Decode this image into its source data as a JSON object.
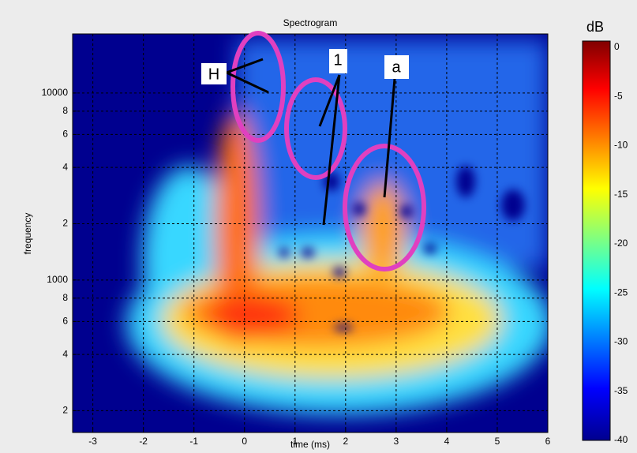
{
  "chart_data": {
    "type": "heatmap",
    "title": "Spectrogram",
    "x_label": "time (ms)",
    "y_label": "frequency",
    "xlim": [
      -3.4,
      6
    ],
    "xticks": [
      -3,
      -2,
      -1,
      0,
      1,
      2,
      3,
      4,
      5,
      6
    ],
    "ylim": [
      153,
      20700
    ],
    "y_scale": "log",
    "yticks": [
      {
        "value": 200,
        "label": "2"
      },
      {
        "value": 400,
        "label": "4"
      },
      {
        "value": 600,
        "label": "6"
      },
      {
        "value": 800,
        "label": "8"
      },
      1000,
      {
        "value": 2000,
        "label": "2"
      },
      {
        "value": 4000,
        "label": "4"
      },
      {
        "value": 6000,
        "label": "6"
      },
      {
        "value": 8000,
        "label": "8"
      },
      10000
    ],
    "grid": true,
    "colorbar": {
      "label": "dB",
      "lim": [
        -40,
        0
      ],
      "ticks": [
        0,
        -5,
        -10,
        -15,
        -20,
        -25,
        -30,
        -35,
        -40
      ]
    },
    "annotations": [
      "H",
      "1",
      "a"
    ]
  }
}
